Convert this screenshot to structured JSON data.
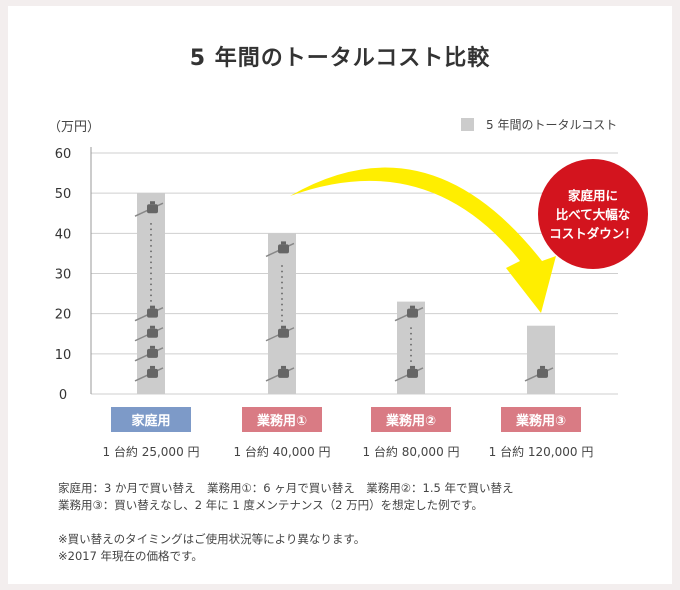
{
  "title": "5 年間のトータルコスト比較",
  "unit_label": "（万円）",
  "badge_text": "家庭用に\n比べて大幅な\nコストダウン！",
  "colors": {
    "bar": "#cccccc",
    "home_label": "#7d9ac8",
    "business_label": "#d97b84",
    "arrow": "#ffee00",
    "badge": "#d3141e"
  },
  "chart_data": {
    "type": "bar",
    "categories": [
      "家庭用",
      "業務用①",
      "業務用②",
      "業務用③"
    ],
    "series": [
      {
        "name": "5 年間のトータルコスト",
        "values": [
          50,
          40,
          23,
          17
        ]
      }
    ],
    "ylim": [
      0,
      60
    ],
    "yticks": [
      0,
      10,
      20,
      30,
      40,
      50,
      60
    ],
    "ylabel": "（万円）",
    "grid": true,
    "legend": "top-right",
    "prices": [
      "1 台約 25,000 円",
      "1 台約 40,000 円",
      "1 台約 80,000 円",
      "1 台約 120,000 円"
    ],
    "icon_marks": [
      {
        "values": [
          5,
          10,
          15,
          20,
          46
        ]
      },
      {
        "values": [
          5,
          15,
          36
        ]
      },
      {
        "values": [
          5,
          20
        ]
      },
      {
        "values": [
          5
        ]
      }
    ]
  },
  "notes": [
    "家庭用：3 か月で買い替え　業務用①：6 ヶ月で買い替え　業務用②：1.5 年で買い替え",
    "業務用③：買い替えなし、2 年に 1 度メンテナンス（2 万円）を想定した例です。",
    "",
    "※買い替えのタイミングはご使用状況等により異なります。",
    "※2017 年現在の価格です。"
  ]
}
